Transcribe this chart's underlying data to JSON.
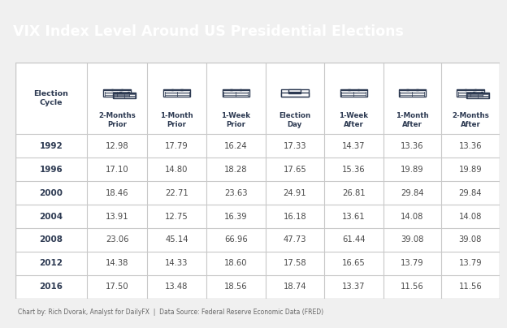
{
  "title": "VIX Index Level Around US Presidential Elections",
  "title_bg_color": "#4a5568",
  "title_text_color": "#ffffff",
  "table_bg_color": "#ffffff",
  "outer_bg_color": "#f0f0f0",
  "border_color": "#c8c8c8",
  "header_text_color": "#2d3a52",
  "row_text_color": "#4a4a4a",
  "year_text_color": "#2d3a52",
  "footer_text": "Chart by: Rich Dvorak, Analyst for DailyFX  |  Data Source: Federal Reserve Economic Data (FRED)",
  "col_headers": [
    "Election\nCycle",
    "2-Months\nPrior",
    "1-Month\nPrior",
    "1-Week\nPrior",
    "Election\nDay",
    "1-Week\nAfter",
    "1-Month\nAfter",
    "2-Months\nAfter"
  ],
  "years": [
    "1992",
    "1996",
    "2000",
    "2004",
    "2008",
    "2012",
    "2016"
  ],
  "data": [
    [
      12.98,
      17.79,
      16.24,
      17.33,
      14.37,
      13.36,
      13.36
    ],
    [
      17.1,
      14.8,
      18.28,
      17.65,
      15.36,
      19.89,
      19.89
    ],
    [
      18.46,
      22.71,
      23.63,
      24.91,
      26.81,
      29.84,
      29.84
    ],
    [
      13.91,
      12.75,
      16.39,
      16.18,
      13.61,
      14.08,
      14.08
    ],
    [
      23.06,
      45.14,
      66.96,
      47.73,
      61.44,
      39.08,
      39.08
    ],
    [
      14.38,
      14.33,
      18.6,
      17.58,
      16.65,
      13.79,
      13.79
    ],
    [
      17.5,
      13.48,
      18.56,
      18.74,
      13.37,
      11.56,
      11.56
    ]
  ],
  "title_color_exact": "#4b5973"
}
